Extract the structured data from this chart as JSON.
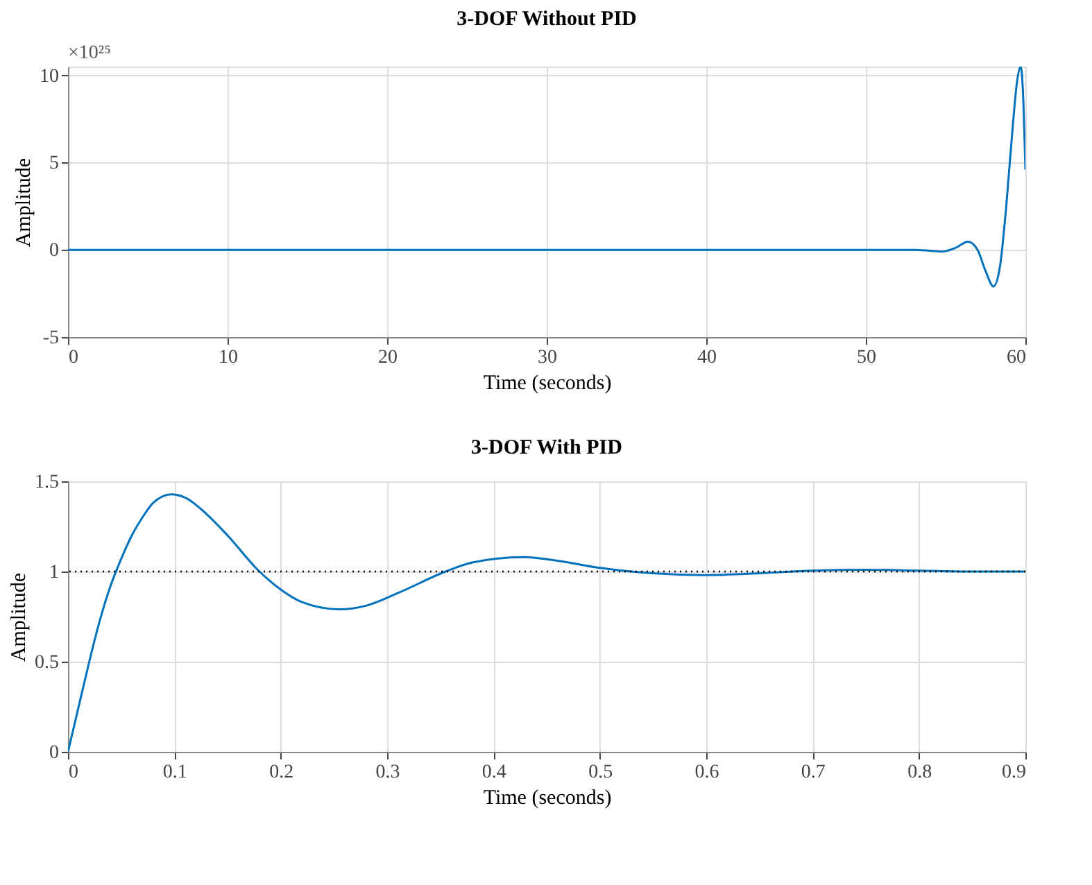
{
  "chart_data": [
    {
      "type": "line",
      "title": "3-DOF Without PID",
      "xlabel": "Time (seconds)",
      "ylabel": "Amplitude",
      "annotations": [
        "×10²⁵"
      ],
      "xlim": [
        0,
        60
      ],
      "xticks": [
        0,
        10,
        20,
        30,
        40,
        50,
        60
      ],
      "ylim": [
        -5,
        10.5
      ],
      "yticks": [
        -5,
        0,
        5,
        10
      ],
      "grid": true,
      "series": [
        {
          "color": "#0072bd",
          "x": [
            0,
            10,
            20,
            30,
            40,
            50,
            53,
            54,
            54.8,
            55.6,
            56.4,
            57.0,
            57.5,
            58.0,
            58.4,
            58.8,
            59.2,
            59.5,
            59.7,
            59.85,
            60
          ],
          "values": [
            0,
            0,
            0,
            0,
            0,
            0,
            0,
            -0.05,
            -0.1,
            0.1,
            0.46,
            0.0,
            -1.2,
            -2.1,
            -1.0,
            2.5,
            7.0,
            9.8,
            10.5,
            9.0,
            4.6
          ]
        }
      ]
    },
    {
      "type": "line",
      "title": "3-DOF With PID",
      "xlabel": "Time (seconds)",
      "ylabel": "Amplitude",
      "xlim": [
        0,
        0.9
      ],
      "xticks": [
        0,
        0.1,
        0.2,
        0.3,
        0.4,
        0.5,
        0.6,
        0.7,
        0.8,
        0.9
      ],
      "ylim": [
        0,
        1.5
      ],
      "yticks": [
        0,
        0.5,
        1,
        1.5
      ],
      "grid": true,
      "ref_lines": [
        {
          "axis": "y",
          "value": 1,
          "color": "#000000",
          "line_style": "dotted"
        }
      ],
      "series": [
        {
          "color": "#0072bd",
          "x": [
            0,
            0.01,
            0.02,
            0.03,
            0.04,
            0.05,
            0.06,
            0.07,
            0.08,
            0.097,
            0.11,
            0.13,
            0.15,
            0.18,
            0.2,
            0.22,
            0.255,
            0.28,
            0.31,
            0.355,
            0.38,
            0.428,
            0.46,
            0.5,
            0.55,
            0.6,
            0.65,
            0.7,
            0.75,
            0.8,
            0.85,
            0.9
          ],
          "values": [
            0,
            0.25,
            0.5,
            0.73,
            0.92,
            1.07,
            1.2,
            1.3,
            1.38,
            1.428,
            1.41,
            1.32,
            1.2,
            1.0,
            0.9,
            0.83,
            0.79,
            0.81,
            0.88,
            1.0,
            1.05,
            1.08,
            1.06,
            1.02,
            0.99,
            0.98,
            0.99,
            1.005,
            1.01,
            1.005,
            1.0,
            1.0
          ]
        }
      ]
    }
  ]
}
